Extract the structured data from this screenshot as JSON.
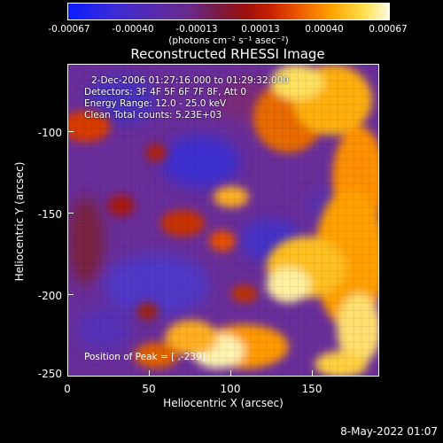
{
  "colorbar": {
    "ticks": [
      "-0.00067",
      "-0.00040",
      "-0.00013",
      "0.00013",
      "0.00040",
      "0.00067"
    ],
    "units": "(photons cm⁻² s⁻¹ asec⁻²)"
  },
  "title": "Reconstructed RHESSI Image",
  "info": {
    "time": "2-Dec-2006 01:27:16.000 to 01:29:32.000",
    "detectors": "Detectors: 3F 4F 5F 6F 7F 8F, Att 0",
    "energy": "Energy Range: 12.0 - 25.0 keV",
    "method": "Clean    Total counts: 5.23E+03",
    "peak": "Position of Peak = [  ,-239]"
  },
  "axes": {
    "xlabel": "Heliocentric X (arcsec)",
    "ylabel": "Heliocentric Y (arcsec)",
    "xticks": [
      "0",
      "50",
      "100",
      "150"
    ],
    "yticks": [
      "-100",
      "-150",
      "-200",
      "-250"
    ],
    "xlim": [
      0,
      190
    ],
    "ylim": [
      -250,
      -60
    ]
  },
  "datestamp": "8-May-2022 01:07"
}
